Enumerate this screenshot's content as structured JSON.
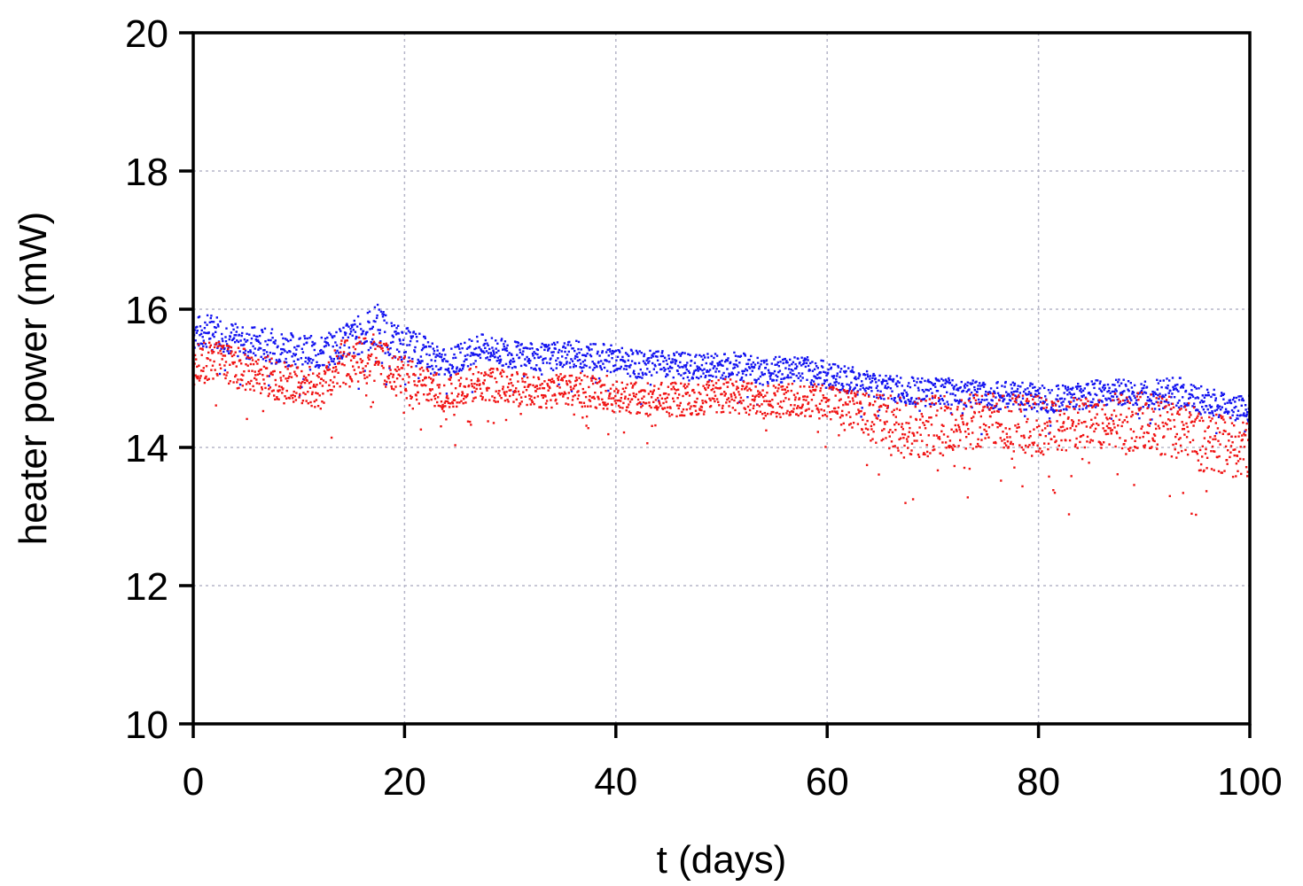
{
  "chart_data": {
    "type": "scatter",
    "xlabel": "t (days)",
    "ylabel": "heater power (mW)",
    "xlim": [
      0,
      100
    ],
    "ylim": [
      10,
      20
    ],
    "x_ticks": [
      "0",
      "20",
      "40",
      "60",
      "80",
      "100"
    ],
    "y_ticks": [
      "10",
      "12",
      "14",
      "16",
      "18",
      "20"
    ],
    "grid": true,
    "legend": "none",
    "series": [
      {
        "color": "#1414f0",
        "x": [
          0,
          2,
          4,
          6,
          8,
          10,
          12,
          14,
          16,
          17.5,
          19,
          21,
          24,
          27,
          30,
          33,
          36,
          39,
          42,
          45,
          48,
          51,
          54,
          57,
          60,
          63,
          66,
          69,
          72,
          75,
          78,
          81,
          84,
          87,
          90,
          93,
          96,
          98,
          100
        ],
        "values": [
          15.65,
          15.7,
          15.55,
          15.5,
          15.45,
          15.4,
          15.35,
          15.5,
          15.65,
          15.75,
          15.55,
          15.45,
          15.2,
          15.45,
          15.35,
          15.3,
          15.35,
          15.3,
          15.2,
          15.2,
          15.15,
          15.2,
          15.1,
          15.15,
          15.05,
          14.95,
          14.85,
          14.8,
          14.8,
          14.75,
          14.75,
          14.7,
          14.75,
          14.8,
          14.75,
          14.8,
          14.65,
          14.6,
          14.55
        ],
        "spread": [
          0.25,
          0.25,
          0.25,
          0.25,
          0.25,
          0.25,
          0.25,
          0.25,
          0.3,
          0.35,
          0.25,
          0.25,
          0.2,
          0.2,
          0.2,
          0.2,
          0.2,
          0.2,
          0.2,
          0.2,
          0.2,
          0.2,
          0.2,
          0.2,
          0.2,
          0.2,
          0.2,
          0.2,
          0.2,
          0.2,
          0.2,
          0.2,
          0.2,
          0.2,
          0.2,
          0.25,
          0.2,
          0.2,
          0.2
        ]
      },
      {
        "color": "#f01414",
        "x": [
          0,
          2,
          4,
          6,
          8,
          10,
          12,
          14,
          16,
          17.5,
          19,
          21,
          24,
          27,
          30,
          33,
          36,
          39,
          42,
          45,
          48,
          51,
          54,
          57,
          60,
          63,
          66,
          69,
          72,
          75,
          78,
          81,
          84,
          87,
          90,
          93,
          96,
          98,
          100
        ],
        "values": [
          15.2,
          15.25,
          15.15,
          15.1,
          14.95,
          14.9,
          14.85,
          15.2,
          15.25,
          15.3,
          15.1,
          14.95,
          14.75,
          14.95,
          14.85,
          14.8,
          14.85,
          14.8,
          14.7,
          14.7,
          14.7,
          14.75,
          14.65,
          14.7,
          14.65,
          14.5,
          14.3,
          14.3,
          14.35,
          14.4,
          14.35,
          14.3,
          14.35,
          14.4,
          14.35,
          14.3,
          14.05,
          14.0,
          14.0
        ],
        "spread": [
          0.3,
          0.3,
          0.3,
          0.3,
          0.3,
          0.3,
          0.3,
          0.35,
          0.35,
          0.35,
          0.3,
          0.3,
          0.25,
          0.25,
          0.25,
          0.25,
          0.25,
          0.25,
          0.25,
          0.25,
          0.25,
          0.25,
          0.25,
          0.25,
          0.25,
          0.3,
          0.45,
          0.45,
          0.4,
          0.4,
          0.45,
          0.45,
          0.4,
          0.4,
          0.45,
          0.45,
          0.45,
          0.45,
          0.45
        ]
      }
    ]
  }
}
